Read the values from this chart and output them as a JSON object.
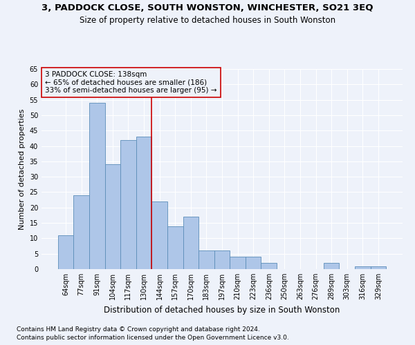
{
  "title": "3, PADDOCK CLOSE, SOUTH WONSTON, WINCHESTER, SO21 3EQ",
  "subtitle": "Size of property relative to detached houses in South Wonston",
  "xlabel": "Distribution of detached houses by size in South Wonston",
  "ylabel": "Number of detached properties",
  "footnote1": "Contains HM Land Registry data © Crown copyright and database right 2024.",
  "footnote2": "Contains public sector information licensed under the Open Government Licence v3.0.",
  "bar_labels": [
    "64sqm",
    "77sqm",
    "91sqm",
    "104sqm",
    "117sqm",
    "130sqm",
    "144sqm",
    "157sqm",
    "170sqm",
    "183sqm",
    "197sqm",
    "210sqm",
    "223sqm",
    "236sqm",
    "250sqm",
    "263sqm",
    "276sqm",
    "289sqm",
    "303sqm",
    "316sqm",
    "329sqm"
  ],
  "bar_values": [
    11,
    24,
    54,
    34,
    42,
    43,
    22,
    14,
    17,
    6,
    6,
    4,
    4,
    2,
    0,
    0,
    0,
    2,
    0,
    1,
    1
  ],
  "bar_color": "#aec6e8",
  "bar_edge_color": "#5b8db8",
  "annotation_text": "3 PADDOCK CLOSE: 138sqm\n← 65% of detached houses are smaller (186)\n33% of semi-detached houses are larger (95) →",
  "vline_x": 5.5,
  "vline_color": "#cc0000",
  "annotation_box_color": "#cc0000",
  "ylim": [
    0,
    65
  ],
  "yticks": [
    0,
    5,
    10,
    15,
    20,
    25,
    30,
    35,
    40,
    45,
    50,
    55,
    60,
    65
  ],
  "background_color": "#eef2fa",
  "grid_color": "#ffffff",
  "title_fontsize": 9.5,
  "subtitle_fontsize": 8.5,
  "xlabel_fontsize": 8.5,
  "ylabel_fontsize": 8,
  "tick_fontsize": 7,
  "annotation_fontsize": 7.5,
  "footnote_fontsize": 6.5
}
